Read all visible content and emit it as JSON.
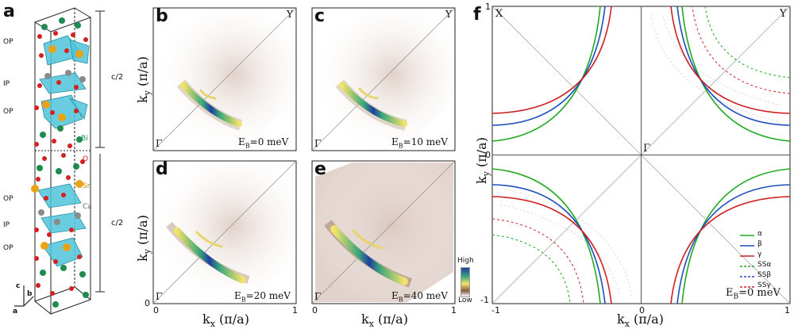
{
  "panels": {
    "a": {
      "letter": "a",
      "layer_labels": [
        "OP",
        "IP",
        "OP",
        "OP",
        "IP",
        "OP"
      ],
      "half_cell_label": "c/2",
      "element_labels": {
        "bi": "Bi",
        "o": "O",
        "sr": "Sr",
        "ca": "Ca"
      },
      "axes": {
        "c": "c",
        "b": "b",
        "a": "a"
      }
    },
    "b": {
      "letter": "b",
      "energy": "E",
      "energy_sub": "B",
      "energy_value": "=0 meV",
      "corner_top": "Y",
      "corner_bottom": "Γ"
    },
    "c": {
      "letter": "c",
      "energy": "E",
      "energy_sub": "B",
      "energy_value": "=10 meV",
      "corner_top": "Y",
      "corner_bottom": "Γ"
    },
    "d": {
      "letter": "d",
      "energy": "E",
      "energy_sub": "B",
      "energy_value": "=20 meV",
      "corner_bottom": "Γ"
    },
    "e": {
      "letter": "e",
      "energy": "E",
      "energy_sub": "B",
      "energy_value": "=40 meV",
      "corner_bottom": "Γ"
    },
    "f": {
      "letter": "f",
      "corner_x": "X",
      "corner_y": "Y",
      "center": "Γ",
      "energy": "E",
      "energy_sub": "B",
      "energy_value": "=0 meV"
    }
  },
  "axes": {
    "ky_label": "k",
    "ky_sub": "y",
    "ky_unit": " (π/a)",
    "kx_label": "k",
    "kx_sub": "x",
    "kx_unit": " (π/a)",
    "tick_0": "0",
    "tick_1": "1",
    "tick_m1": "-1"
  },
  "colorbar": {
    "high": "High",
    "low": "Low"
  },
  "legend": [
    {
      "label": "α",
      "color": "#22aa22",
      "style": "solid"
    },
    {
      "label": "β",
      "color": "#1f4fbf",
      "style": "solid"
    },
    {
      "label": "γ",
      "color": "#cc2222",
      "style": "solid"
    },
    {
      "label": "SSα",
      "color": "#22aa22",
      "style": "dashed"
    },
    {
      "label": "SSβ",
      "color": "#1f4fbf",
      "style": "dashed"
    },
    {
      "label": "SSγ",
      "color": "#cc2222",
      "style": "dashed"
    }
  ],
  "colors": {
    "alpha": "#22aa22",
    "beta": "#1f4fbf",
    "gamma": "#cc2222",
    "bi_atom": "#1d8a4e",
    "o_atom": "#d42020",
    "sr_atom": "#e8a317",
    "ca_atom": "#8a8a8a",
    "polyhedra": "#4fc3d9"
  }
}
